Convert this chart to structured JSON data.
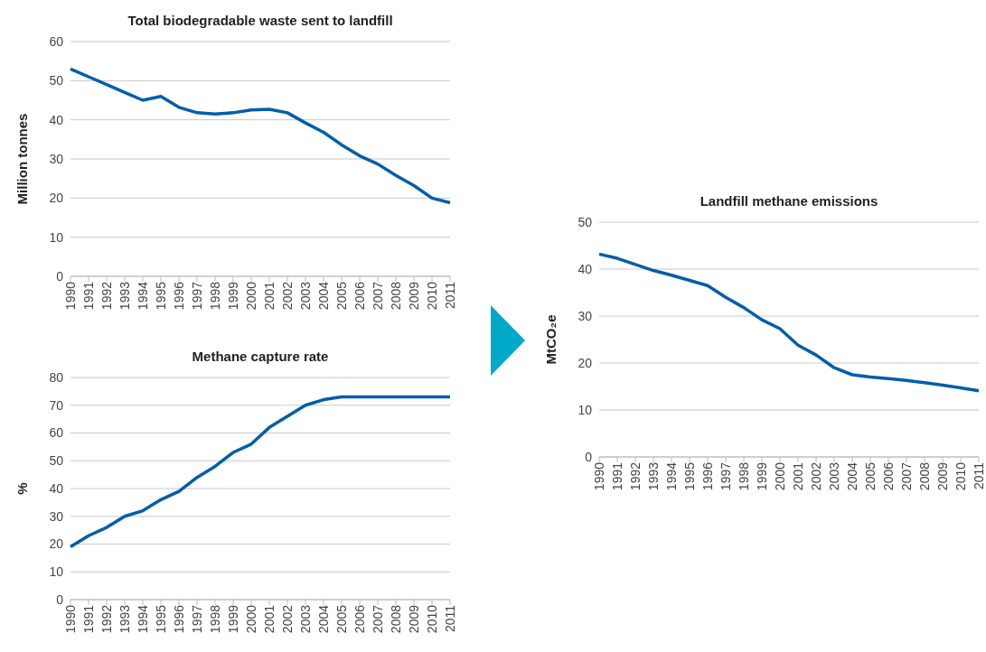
{
  "chart_data": [
    {
      "type": "line",
      "title": "Total biodegradable waste sent to landfill",
      "ylabel": "Million tonnes",
      "categories": [
        "1990",
        "1991",
        "1992",
        "1993",
        "1994",
        "1995",
        "1996",
        "1997",
        "1998",
        "1999",
        "2000",
        "2001",
        "2002",
        "2003",
        "2004",
        "2005",
        "2006",
        "2007",
        "2008",
        "2009",
        "2010",
        "2011"
      ],
      "series": [
        {
          "color": "#005eaa",
          "values": [
            53,
            51,
            49,
            47,
            45,
            46,
            43.2,
            41.8,
            41.5,
            41.8,
            42.5,
            42.7,
            41.8,
            39.2,
            36.8,
            33.6,
            30.8,
            28.7,
            25.8,
            23.2,
            20,
            18.8
          ]
        }
      ],
      "ylim": [
        0,
        60
      ],
      "yticks": [
        0,
        10,
        20,
        30,
        40,
        50,
        60
      ],
      "grid": "y",
      "marker": "none"
    },
    {
      "type": "line",
      "title": "Methane capture rate",
      "ylabel": "%",
      "categories": [
        "1990",
        "1991",
        "1992",
        "1993",
        "1994",
        "1995",
        "1996",
        "1997",
        "1998",
        "1999",
        "2000",
        "2001",
        "2002",
        "2003",
        "2004",
        "2005",
        "2006",
        "2007",
        "2008",
        "2009",
        "2010",
        "2011"
      ],
      "series": [
        {
          "color": "#005eaa",
          "values": [
            19,
            23,
            26,
            30,
            32,
            36,
            39,
            44,
            48,
            53,
            56,
            62,
            66,
            70,
            72,
            73,
            73,
            73,
            73,
            73,
            73,
            73
          ]
        }
      ],
      "ylim": [
        0,
        80
      ],
      "yticks": [
        0,
        10,
        20,
        30,
        40,
        50,
        60,
        70,
        80
      ],
      "grid": "y",
      "marker": "none"
    },
    {
      "type": "line",
      "title": "Landfill methane emissions",
      "ylabel": "MtCO₂e",
      "categories": [
        "1990",
        "1991",
        "1992",
        "1993",
        "1994",
        "1995",
        "1996",
        "1997",
        "1998",
        "1999",
        "2000",
        "2001",
        "2002",
        "2003",
        "2004",
        "2005",
        "2006",
        "2007",
        "2008",
        "2009",
        "2010",
        "2011"
      ],
      "series": [
        {
          "color": "#005eaa",
          "values": [
            43.2,
            42.3,
            41,
            39.7,
            38.7,
            37.6,
            36.5,
            34,
            31.8,
            29.2,
            27.3,
            23.8,
            21.7,
            19,
            17.5,
            17,
            16.7,
            16.3,
            15.8,
            15.3,
            14.7,
            14.1
          ]
        }
      ],
      "ylim": [
        0,
        50
      ],
      "yticks": [
        0,
        10,
        20,
        30,
        40,
        50
      ],
      "grid": "y",
      "marker": "none"
    }
  ]
}
